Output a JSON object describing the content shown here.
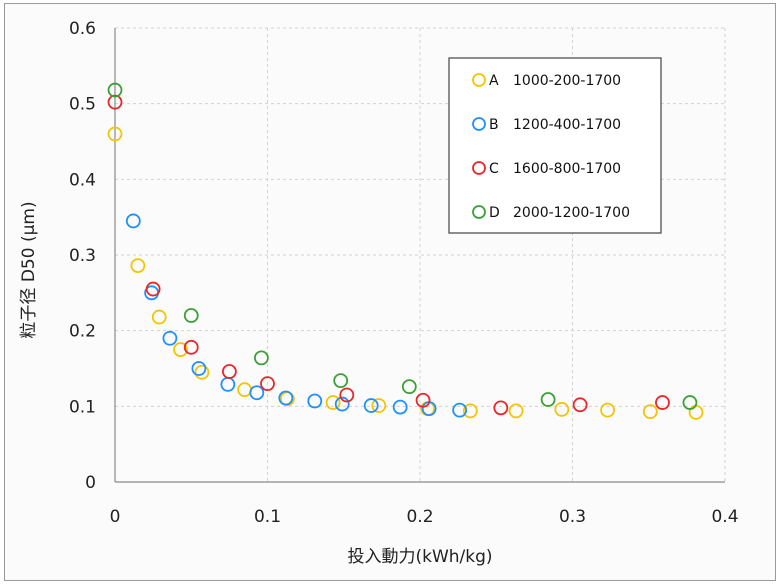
{
  "chart_data": {
    "type": "scatter",
    "xlabel": "投入動力(kWh/kg)",
    "ylabel": "粒子径 D50 (μm)",
    "xlim": [
      0,
      0.4
    ],
    "ylim": [
      0,
      0.6
    ],
    "xticks": [
      "0",
      "0.1",
      "0.2",
      "0.3",
      "0.4"
    ],
    "yticks": [
      "0",
      "0.1",
      "0.2",
      "0.3",
      "0.4",
      "0.5",
      "0.6"
    ],
    "grid": "dashed",
    "legend_position": "top-right",
    "series": [
      {
        "letter": "A",
        "label": "1000-200-1700",
        "color": "#f5c400",
        "points": [
          [
            0,
            0.46
          ],
          [
            0.015,
            0.286
          ],
          [
            0.029,
            0.218
          ],
          [
            0.043,
            0.175
          ],
          [
            0.057,
            0.145
          ],
          [
            0.085,
            0.122
          ],
          [
            0.113,
            0.11
          ],
          [
            0.143,
            0.105
          ],
          [
            0.173,
            0.101
          ],
          [
            0.205,
            0.097
          ],
          [
            0.233,
            0.094
          ],
          [
            0.263,
            0.094
          ],
          [
            0.293,
            0.096
          ],
          [
            0.323,
            0.095
          ],
          [
            0.351,
            0.093
          ],
          [
            0.381,
            0.092
          ]
        ]
      },
      {
        "letter": "B",
        "label": "1200-400-1700",
        "color": "#1e90ff",
        "points": [
          [
            0.012,
            0.345
          ],
          [
            0.024,
            0.25
          ],
          [
            0.036,
            0.19
          ],
          [
            0.055,
            0.15
          ],
          [
            0.074,
            0.129
          ],
          [
            0.093,
            0.118
          ],
          [
            0.112,
            0.111
          ],
          [
            0.131,
            0.107
          ],
          [
            0.149,
            0.103
          ],
          [
            0.168,
            0.101
          ],
          [
            0.187,
            0.099
          ],
          [
            0.206,
            0.097
          ],
          [
            0.226,
            0.095
          ]
        ]
      },
      {
        "letter": "C",
        "label": "1600-800-1700",
        "color": "#e8262b",
        "points": [
          [
            0,
            0.502
          ],
          [
            0.025,
            0.255
          ],
          [
            0.05,
            0.178
          ],
          [
            0.075,
            0.146
          ],
          [
            0.1,
            0.13
          ],
          [
            0.152,
            0.115
          ],
          [
            0.202,
            0.108
          ],
          [
            0.253,
            0.098
          ],
          [
            0.305,
            0.102
          ],
          [
            0.359,
            0.105
          ]
        ]
      },
      {
        "letter": "D",
        "label": "2000-1200-1700",
        "color": "#3aa035",
        "points": [
          [
            0,
            0.518
          ],
          [
            0.05,
            0.22
          ],
          [
            0.096,
            0.164
          ],
          [
            0.148,
            0.134
          ],
          [
            0.193,
            0.126
          ],
          [
            0.284,
            0.109
          ],
          [
            0.377,
            0.105
          ]
        ]
      }
    ]
  }
}
